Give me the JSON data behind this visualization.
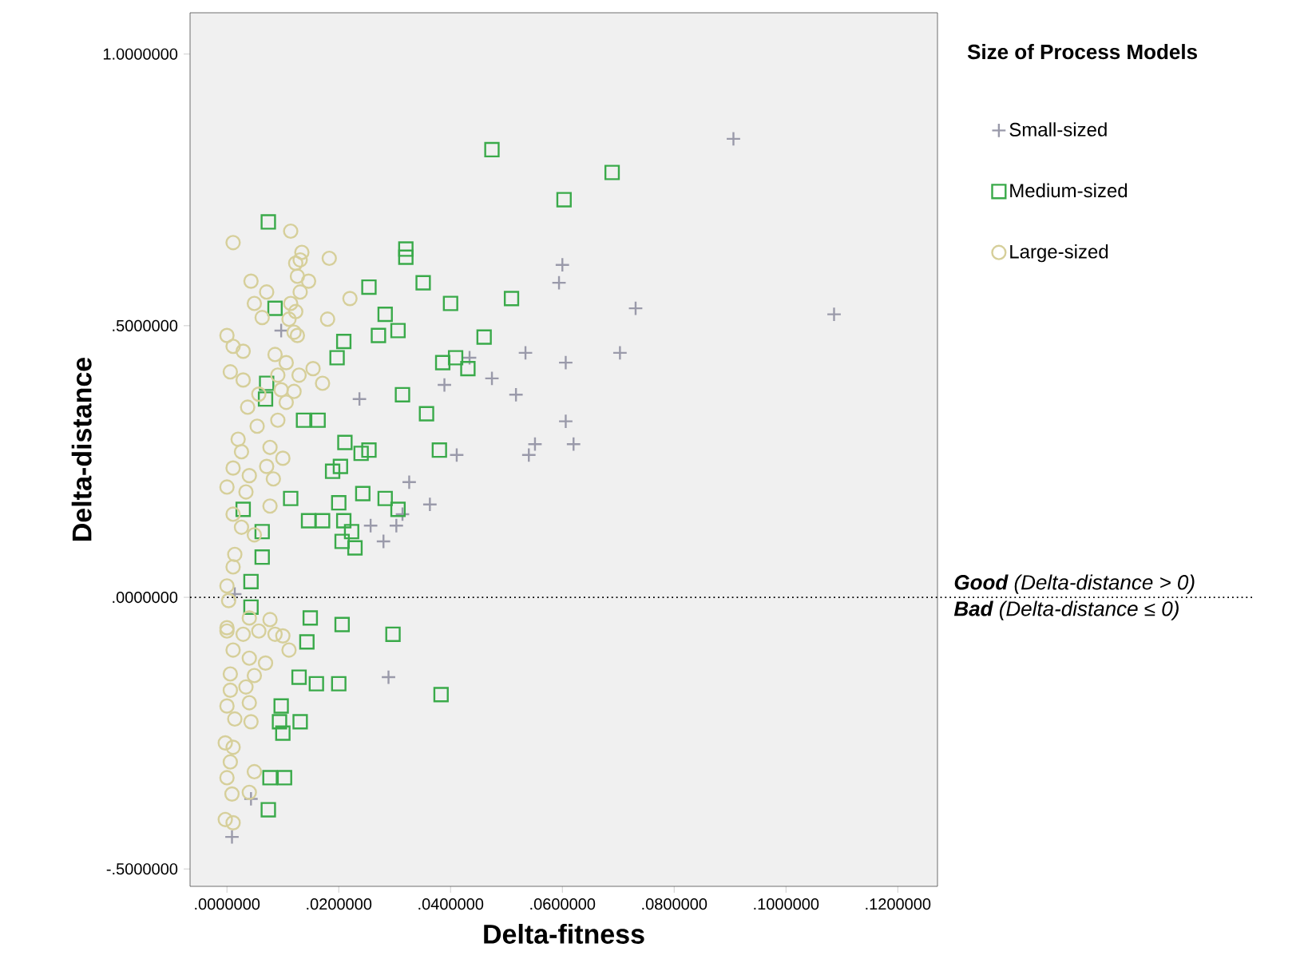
{
  "chart_data": {
    "type": "scatter",
    "xlabel": "Delta-fitness",
    "ylabel": "Delta-distance",
    "legend_title": "Size of Process Models",
    "legend": "right",
    "xlim": [
      -0.0066,
      0.1271
    ],
    "ylim": [
      -0.532,
      1.076
    ],
    "xticks": [
      {
        "value": 0,
        "label": ".0000000"
      },
      {
        "value": 0.02,
        "label": ".0200000"
      },
      {
        "value": 0.04,
        "label": ".0400000"
      },
      {
        "value": 0.06,
        "label": ".0600000"
      },
      {
        "value": 0.08,
        "label": ".0800000"
      },
      {
        "value": 0.1,
        "label": ".1000000"
      },
      {
        "value": 0.12,
        "label": ".1200000"
      }
    ],
    "yticks": [
      {
        "value": -0.5,
        "label": "-.5000000"
      },
      {
        "value": 0,
        "label": ".0000000"
      },
      {
        "value": 0.5,
        "label": ".5000000"
      },
      {
        "value": 1,
        "label": "1.0000000"
      }
    ],
    "ref_lines": [
      {
        "axis": "y",
        "value": 0,
        "line_style": "dotted"
      }
    ],
    "annotations": [
      "**Good** *(Delta-distance > 0)*",
      "**Bad** *(Delta-distance ≤ 0)*"
    ],
    "series": [
      {
        "name": "Small-sized",
        "color": "#9a9aaa",
        "marker": "cross",
        "x": [
          0.0906,
          0.06,
          0.0594,
          0.0731,
          0.1086,
          0.0534,
          0.0606,
          0.0703,
          0.0474,
          0.0389,
          0.0517,
          0.0434,
          0.0606,
          0.0551,
          0.062,
          0.054,
          0.0411,
          0.0326,
          0.0363,
          0.0314,
          0.0257,
          0.0303,
          0.028,
          0.0289,
          0.0097,
          0.0237,
          0.0014,
          0.0043,
          0.0009
        ],
        "values": [
          0.844,
          0.612,
          0.579,
          0.532,
          0.521,
          0.45,
          0.432,
          0.45,
          0.403,
          0.391,
          0.373,
          0.441,
          0.324,
          0.282,
          0.282,
          0.262,
          0.262,
          0.212,
          0.171,
          0.153,
          0.132,
          0.132,
          0.103,
          -0.147,
          0.491,
          0.365,
          0.006,
          -0.371,
          -0.441
        ]
      },
      {
        "name": "Medium-sized",
        "color": "#3aaa4a",
        "marker": "square",
        "x": [
          0.0474,
          0.0689,
          0.0603,
          0.0351,
          0.04,
          0.0509,
          0.046,
          0.0386,
          0.0409,
          0.0431,
          0.0357,
          0.032,
          0.032,
          0.0074,
          0.0254,
          0.0283,
          0.0306,
          0.0271,
          0.0209,
          0.0197,
          0.0086,
          0.0071,
          0.0069,
          0.0314,
          0.0137,
          0.0163,
          0.0211,
          0.0254,
          0.024,
          0.0203,
          0.0189,
          0.038,
          0.0114,
          0.02,
          0.0243,
          0.0283,
          0.0306,
          0.0146,
          0.0171,
          0.0209,
          0.0223,
          0.0206,
          0.0229,
          0.0063,
          0.0063,
          0.0043,
          0.0029,
          0.0043,
          0.0149,
          0.0206,
          0.0297,
          0.0143,
          0.0129,
          0.016,
          0.02,
          0.0383,
          0.0097,
          0.0094,
          0.0131,
          0.01,
          0.0077,
          0.0103,
          0.0074
        ],
        "values": [
          0.824,
          0.782,
          0.732,
          0.579,
          0.541,
          0.55,
          0.479,
          0.432,
          0.441,
          0.421,
          0.338,
          0.641,
          0.626,
          0.691,
          0.571,
          0.521,
          0.491,
          0.482,
          0.471,
          0.441,
          0.532,
          0.394,
          0.365,
          0.373,
          0.326,
          0.326,
          0.285,
          0.271,
          0.265,
          0.241,
          0.232,
          0.271,
          0.182,
          0.174,
          0.191,
          0.182,
          0.162,
          0.141,
          0.141,
          0.141,
          0.121,
          0.103,
          0.091,
          0.121,
          0.074,
          0.029,
          0.162,
          -0.018,
          -0.038,
          -0.05,
          -0.068,
          -0.082,
          -0.147,
          -0.159,
          -0.159,
          -0.179,
          -0.2,
          -0.229,
          -0.229,
          -0.25,
          -0.332,
          -0.332,
          -0.391
        ]
      },
      {
        "name": "Large-sized",
        "color": "#d6cf9a",
        "marker": "circle",
        "x": [
          0.0011,
          0.0114,
          0.0134,
          0.0131,
          0.0183,
          0.0123,
          0.0126,
          0.0043,
          0.0146,
          0.0071,
          0.0131,
          0.022,
          0.0049,
          0.0114,
          0.0123,
          0.0063,
          0.0111,
          0.018,
          0.012,
          0.0126,
          0.0,
          0.0011,
          0.0029,
          0.0086,
          0.0106,
          0.0154,
          0.0006,
          0.0029,
          0.0091,
          0.0129,
          0.0171,
          0.0097,
          0.012,
          0.0057,
          0.0106,
          0.0037,
          0.0054,
          0.0091,
          0.002,
          0.0026,
          0.0077,
          0.01,
          0.0071,
          0.0011,
          0.0083,
          0.004,
          0.0,
          0.0034,
          0.0011,
          0.0077,
          0.0026,
          0.0049,
          0.0014,
          0.0011,
          0.0,
          0.0003,
          0.004,
          0.0,
          0.0077,
          0.0086,
          0.0,
          0.0029,
          0.0057,
          0.01,
          0.0111,
          0.0011,
          0.004,
          0.0069,
          0.0006,
          0.0049,
          0.0006,
          0.0034,
          0.0,
          0.004,
          0.0014,
          0.0043,
          -0.0003,
          0.0011,
          0.0006,
          0.0,
          0.0049,
          0.0009,
          0.004,
          -0.0003,
          0.0011
        ],
        "values": [
          0.653,
          0.674,
          0.635,
          0.621,
          0.624,
          0.615,
          0.591,
          0.582,
          0.582,
          0.562,
          0.562,
          0.55,
          0.541,
          0.541,
          0.526,
          0.515,
          0.512,
          0.512,
          0.488,
          0.482,
          0.482,
          0.462,
          0.453,
          0.447,
          0.432,
          0.421,
          0.415,
          0.4,
          0.409,
          0.409,
          0.394,
          0.382,
          0.379,
          0.374,
          0.359,
          0.35,
          0.315,
          0.326,
          0.291,
          0.268,
          0.276,
          0.256,
          0.241,
          0.238,
          0.218,
          0.224,
          0.203,
          0.194,
          0.153,
          0.168,
          0.129,
          0.115,
          0.079,
          0.056,
          0.021,
          -0.006,
          -0.038,
          -0.056,
          -0.041,
          -0.068,
          -0.062,
          -0.068,
          -0.062,
          -0.071,
          -0.097,
          -0.097,
          -0.112,
          -0.121,
          -0.141,
          -0.144,
          -0.171,
          -0.165,
          -0.2,
          -0.194,
          -0.224,
          -0.229,
          -0.268,
          -0.276,
          -0.303,
          -0.332,
          -0.321,
          -0.362,
          -0.359,
          -0.409,
          -0.415
        ]
      }
    ]
  }
}
